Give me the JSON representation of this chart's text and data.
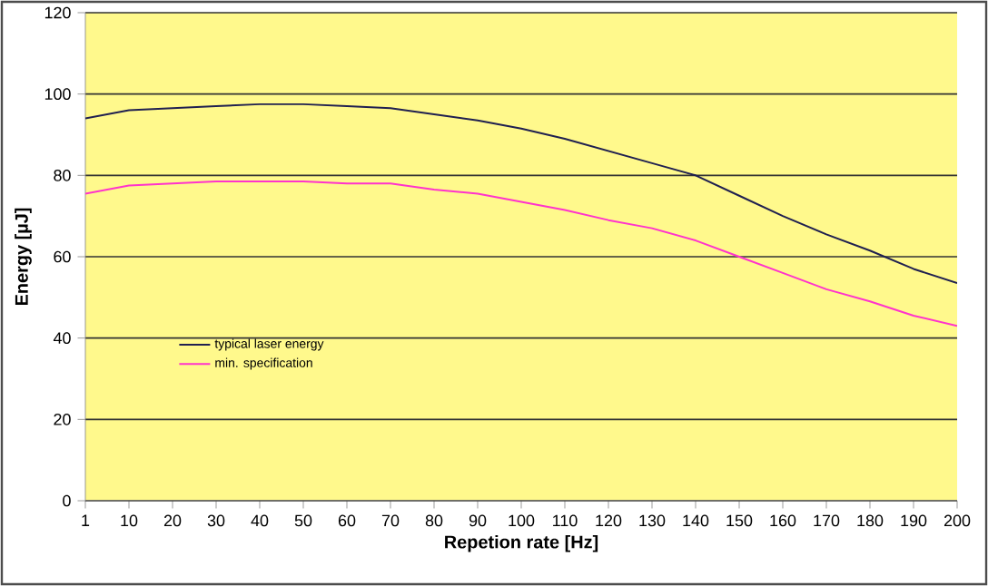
{
  "chart_data": {
    "type": "line",
    "xlabel": "Repetion rate [Hz]",
    "ylabel": "Energy [µJ]",
    "categories": [
      "1",
      "10",
      "20",
      "30",
      "40",
      "50",
      "60",
      "70",
      "80",
      "90",
      "100",
      "110",
      "120",
      "130",
      "140",
      "150",
      "160",
      "170",
      "180",
      "190",
      "200"
    ],
    "series": [
      {
        "name": "typical laser energy",
        "color": "#202050",
        "values": [
          94,
          96,
          96.5,
          97,
          97.5,
          97.5,
          97,
          96.5,
          95,
          93.5,
          91.5,
          89,
          86,
          83,
          80,
          75,
          70,
          65.5,
          61.5,
          57,
          53.5
        ]
      },
      {
        "name": "min. specification",
        "color": "#ff33cc",
        "values": [
          75.5,
          77.5,
          78,
          78.5,
          78.5,
          78.5,
          78,
          78,
          76.5,
          75.5,
          73.5,
          71.5,
          69,
          67,
          64,
          60,
          56,
          52,
          49,
          45.5,
          43
        ]
      }
    ],
    "ylim": [
      0,
      120
    ],
    "yticks": [
      0,
      20,
      40,
      60,
      80,
      100,
      120
    ],
    "grid": "y",
    "legend": "left",
    "marker": "none",
    "line_style": "solid"
  }
}
